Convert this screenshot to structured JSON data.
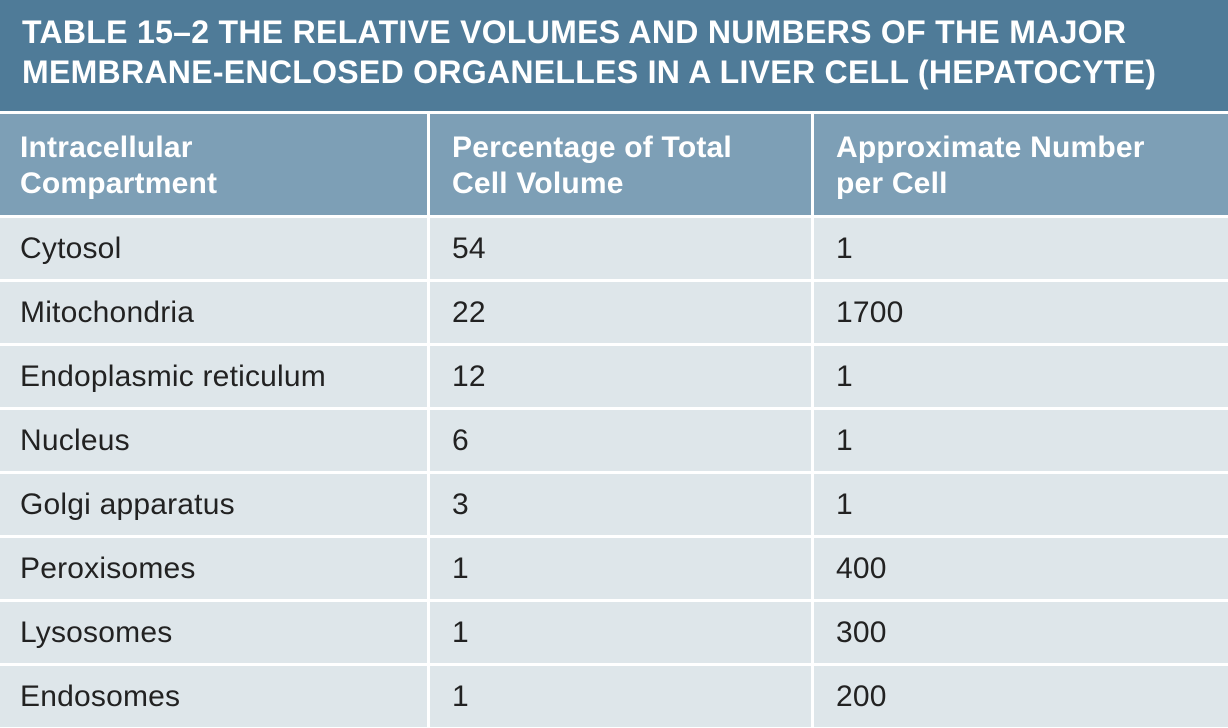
{
  "title": {
    "line1": "TABLE 15–2 THE RELATIVE VOLUMES AND NUMBERS OF THE MAJOR",
    "line2": "MEMBRANE-ENCLOSED ORGANELLES IN A LIVER CELL (HEPATOCYTE)"
  },
  "columns": [
    {
      "line1": "Intracellular",
      "line2": "Compartment"
    },
    {
      "line1": "Percentage of Total",
      "line2": "Cell Volume"
    },
    {
      "line1": "Approximate Number",
      "line2": "per Cell"
    }
  ],
  "rows": [
    {
      "compartment": "Cytosol",
      "percentage": "54",
      "number": "1"
    },
    {
      "compartment": "Mitochondria",
      "percentage": "22",
      "number": "1700"
    },
    {
      "compartment": "Endoplasmic reticulum",
      "percentage": "12",
      "number": "1"
    },
    {
      "compartment": "Nucleus",
      "percentage": "6",
      "number": "1"
    },
    {
      "compartment": "Golgi apparatus",
      "percentage": "3",
      "number": "1"
    },
    {
      "compartment": "Peroxisomes",
      "percentage": "1",
      "number": "400"
    },
    {
      "compartment": "Lysosomes",
      "percentage": "1",
      "number": "300"
    },
    {
      "compartment": "Endosomes",
      "percentage": "1",
      "number": "200"
    }
  ],
  "colors": {
    "title_bg": "#4f7b98",
    "header_bg": "#7d9fb6",
    "row_bg": "#dee6ea",
    "text": "#222222"
  }
}
